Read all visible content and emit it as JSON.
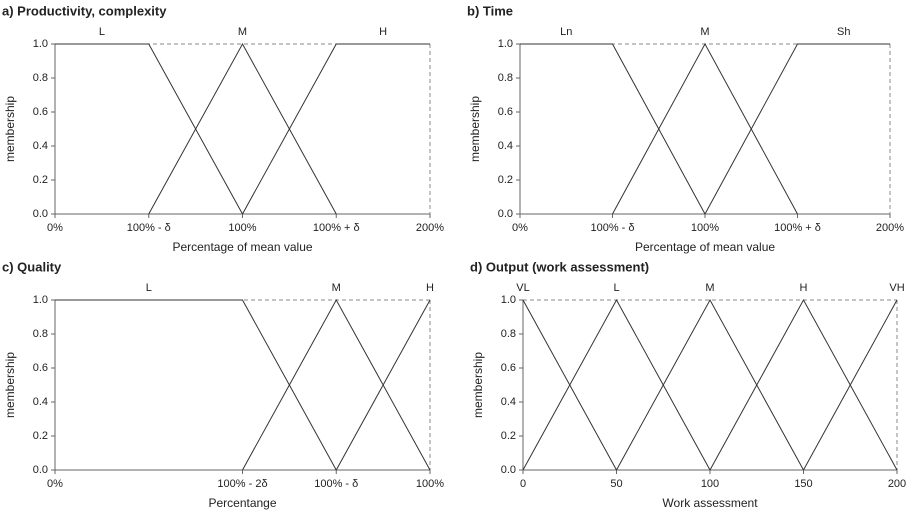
{
  "chart_data": [
    {
      "type": "line",
      "title": "a) Productivity, complexity",
      "xlabel": "Percentage of mean value",
      "ylabel": "membership",
      "x": [
        0,
        50,
        100,
        150,
        200
      ],
      "series": [
        {
          "name": "L",
          "color": "#333333",
          "values": [
            1,
            1,
            0,
            null,
            null
          ]
        },
        {
          "name": "M",
          "color": "#333333",
          "values": [
            null,
            0,
            1,
            0,
            null
          ]
        },
        {
          "name": "H",
          "color": "#333333",
          "values": [
            null,
            null,
            0,
            1,
            1
          ]
        }
      ],
      "xlim": [
        0,
        200
      ],
      "ylim": [
        0,
        1
      ],
      "xticks": [
        {
          "value": 0,
          "label": "0%"
        },
        {
          "value": 50,
          "label": "100% - δ"
        },
        {
          "value": 100,
          "label": "100%"
        },
        {
          "value": 150,
          "label": "100% + δ"
        },
        {
          "value": 200,
          "label": "200%"
        }
      ],
      "yticks": [
        {
          "value": 0,
          "label": "0.0"
        },
        {
          "value": 0.2,
          "label": "0.2"
        },
        {
          "value": 0.4,
          "label": "0.4"
        },
        {
          "value": 0.6,
          "label": "0.6"
        },
        {
          "value": 0.8,
          "label": "0.8"
        },
        {
          "value": 1,
          "label": "1.0"
        }
      ]
    },
    {
      "type": "line",
      "title": "b) Time",
      "xlabel": "Percentage of mean value",
      "ylabel": "membership",
      "x": [
        0,
        50,
        100,
        150,
        200
      ],
      "series": [
        {
          "name": "Ln",
          "color": "#333333",
          "values": [
            1,
            1,
            0,
            null,
            null
          ]
        },
        {
          "name": "M",
          "color": "#333333",
          "values": [
            null,
            0,
            1,
            0,
            null
          ]
        },
        {
          "name": "Sh",
          "color": "#333333",
          "values": [
            null,
            null,
            0,
            1,
            1
          ]
        }
      ],
      "xlim": [
        0,
        200
      ],
      "ylim": [
        0,
        1
      ],
      "xticks": [
        {
          "value": 0,
          "label": "0%"
        },
        {
          "value": 50,
          "label": "100% - δ"
        },
        {
          "value": 100,
          "label": "100%"
        },
        {
          "value": 150,
          "label": "100% + δ"
        },
        {
          "value": 200,
          "label": "200%"
        }
      ],
      "yticks": [
        {
          "value": 0,
          "label": "0.0"
        },
        {
          "value": 0.2,
          "label": "0.2"
        },
        {
          "value": 0.4,
          "label": "0.4"
        },
        {
          "value": 0.6,
          "label": "0.6"
        },
        {
          "value": 0.8,
          "label": "0.8"
        },
        {
          "value": 1,
          "label": "1.0"
        }
      ]
    },
    {
      "type": "line",
      "title": "c) Quality",
      "xlabel": "Percentange",
      "ylabel": "membership",
      "x": [
        0,
        50,
        75,
        100
      ],
      "series": [
        {
          "name": "L",
          "color": "#333333",
          "values": [
            1,
            1,
            0,
            null
          ]
        },
        {
          "name": "M",
          "color": "#333333",
          "values": [
            null,
            0,
            1,
            0
          ]
        },
        {
          "name": "H",
          "color": "#333333",
          "values": [
            null,
            null,
            0,
            1
          ]
        }
      ],
      "xlim": [
        0,
        100
      ],
      "ylim": [
        0,
        1
      ],
      "xticks": [
        {
          "value": 0,
          "label": "0%"
        },
        {
          "value": 50,
          "label": "100% - 2δ"
        },
        {
          "value": 75,
          "label": "100% - δ"
        },
        {
          "value": 100,
          "label": "100%"
        }
      ],
      "yticks": [
        {
          "value": 0,
          "label": "0.0"
        },
        {
          "value": 0.2,
          "label": "0.2"
        },
        {
          "value": 0.4,
          "label": "0.4"
        },
        {
          "value": 0.6,
          "label": "0.6"
        },
        {
          "value": 0.8,
          "label": "0.8"
        },
        {
          "value": 1,
          "label": "1.0"
        }
      ]
    },
    {
      "type": "line",
      "title": "d) Output (work assessment)",
      "xlabel": "Work assessment",
      "ylabel": "membership",
      "x": [
        0,
        50,
        100,
        150,
        200
      ],
      "series": [
        {
          "name": "VL",
          "color": "#333333",
          "values": [
            1,
            0,
            null,
            null,
            null
          ]
        },
        {
          "name": "L",
          "color": "#333333",
          "values": [
            0,
            1,
            0,
            null,
            null
          ]
        },
        {
          "name": "M",
          "color": "#333333",
          "values": [
            null,
            0,
            1,
            0,
            null
          ]
        },
        {
          "name": "H",
          "color": "#333333",
          "values": [
            null,
            null,
            0,
            1,
            0
          ]
        },
        {
          "name": "VH",
          "color": "#333333",
          "values": [
            null,
            null,
            null,
            0,
            1
          ]
        }
      ],
      "xlim": [
        0,
        200
      ],
      "ylim": [
        0,
        1
      ],
      "xticks": [
        0,
        50,
        100,
        150,
        200
      ],
      "yticks": [
        {
          "value": 0,
          "label": "0.0"
        },
        {
          "value": 0.2,
          "label": "0.2"
        },
        {
          "value": 0.4,
          "label": "0.4"
        },
        {
          "value": 0.6,
          "label": "0.6"
        },
        {
          "value": 0.8,
          "label": "0.8"
        },
        {
          "value": 1,
          "label": "1.0"
        }
      ]
    }
  ]
}
